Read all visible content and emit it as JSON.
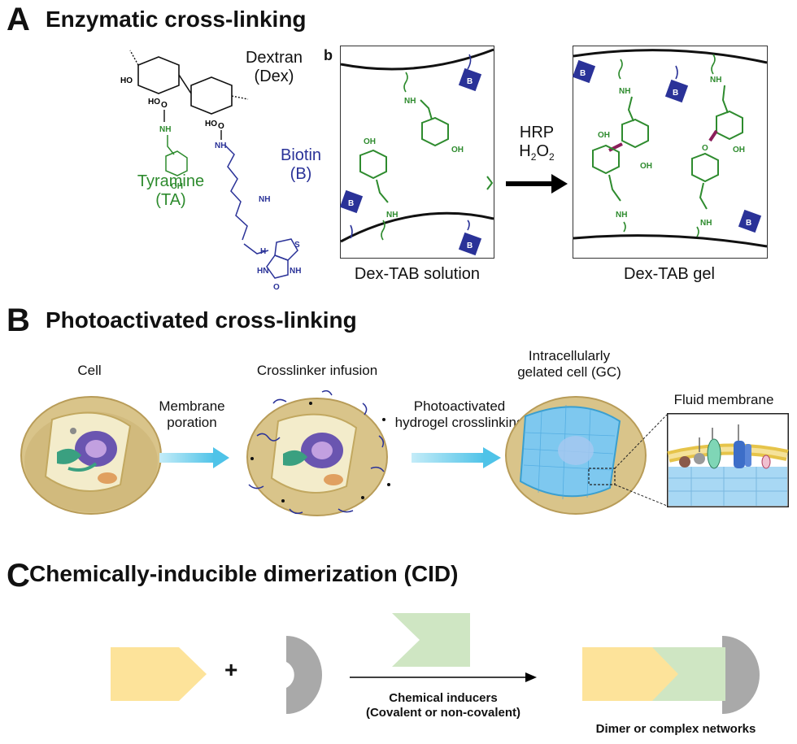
{
  "panel_a": {
    "letter": "A",
    "title": "Enzymatic cross-linking",
    "sub_letter": "b",
    "dextran": "Dextran",
    "dextran_abbr": "(Dex)",
    "tyramine": "Tyramine",
    "tyramine_abbr": "(TA)",
    "biotin": "Biotin",
    "biotin_abbr": "(B)",
    "biotin_badge": "B",
    "reagent_1": "HRP",
    "reagent_2_base": "H",
    "reagent_2_sub1": "2",
    "reagent_2_mid": "O",
    "reagent_2_sub2": "2",
    "solution_caption": "Dex-TAB solution",
    "gel_caption": "Dex-TAB gel",
    "chem_oh": "OH",
    "chem_nh": "NH",
    "chem_o": "O",
    "chem_ho": "HO",
    "chem_h": "H",
    "chem_s": "S",
    "chem_hn": "HN",
    "colors": {
      "green": "#2e8b2e",
      "blue": "#2a3298",
      "link": "#8b1e5a"
    }
  },
  "panel_b": {
    "letter": "B",
    "title": "Photoactivated cross-linking",
    "cell_label": "Cell",
    "step1_line1": "Membrane",
    "step1_line2": "poration",
    "infusion_label": "Crosslinker infusion",
    "step2_line1": "Photoactivated",
    "step2_line2": "hydrogel crosslinking",
    "gc_line1": "Intracellularly",
    "gc_line2": "gelated cell (GC)",
    "membrane_label": "Fluid membrane",
    "colors": {
      "arrow": "#4fc3e8",
      "cell": "#d9c48a",
      "gel": "#7ec8ef"
    }
  },
  "panel_c": {
    "letter": "C",
    "title": "Chemically-inducible dimerization (CID)",
    "plus": "+",
    "inducer_line1": "Chemical inducers",
    "inducer_line2": "(Covalent or non-covalent)",
    "product_label": "Dimer or complex networks",
    "colors": {
      "yellow": "#fde39a",
      "green": "#cfe6c3",
      "gray": "#a9a9a9"
    }
  }
}
